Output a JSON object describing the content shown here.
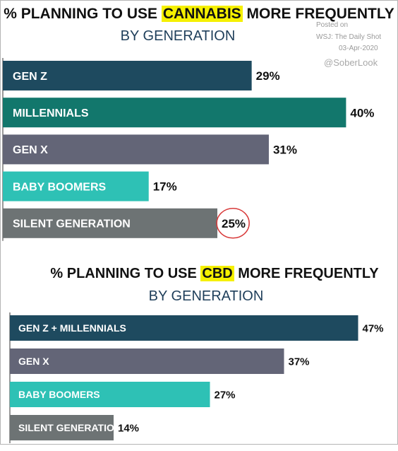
{
  "watermark": {
    "posted_on": "Posted on",
    "source": "WSJ: The Daily Shot",
    "date": "03-Apr-2020",
    "handle": "@SoberLook"
  },
  "chart_data": [
    {
      "type": "bar",
      "orientation": "horizontal",
      "title_prefix": "% PLANNING TO USE ",
      "title_highlight": "CANNABIS",
      "title_suffix": " MORE FREQUENTLY",
      "subtitle": "BY GENERATION",
      "categories": [
        "GEN Z",
        "MILLENNIALS",
        "GEN X",
        "BABY BOOMERS",
        "SILENT GENERATION"
      ],
      "values": [
        29,
        40,
        31,
        17,
        25
      ],
      "value_labels": [
        "29%",
        "40%",
        "31%",
        "17%",
        "25%"
      ],
      "colors": [
        "#1e4a5f",
        "#12776c",
        "#636577",
        "#2ec1b5",
        "#6d7374"
      ],
      "highlight_color": "#f5f000",
      "annotation": "25% value circled in red",
      "annotation_color": "#d83a3a"
    },
    {
      "type": "bar",
      "orientation": "horizontal",
      "title_prefix": "% PLANNING TO USE ",
      "title_highlight": "CBD",
      "title_suffix": " MORE FREQUENTLY",
      "subtitle": "BY GENERATION",
      "categories": [
        "GEN Z + MILLENNIALS",
        "GEN X",
        "BABY BOOMERS",
        "SILENT GENERATION"
      ],
      "values": [
        47,
        37,
        27,
        14
      ],
      "value_labels": [
        "47%",
        "37%",
        "27%",
        "14%"
      ],
      "colors": [
        "#1e4a5f",
        "#636577",
        "#2ec1b5",
        "#6d7374"
      ],
      "highlight_color": "#f5f000"
    }
  ]
}
